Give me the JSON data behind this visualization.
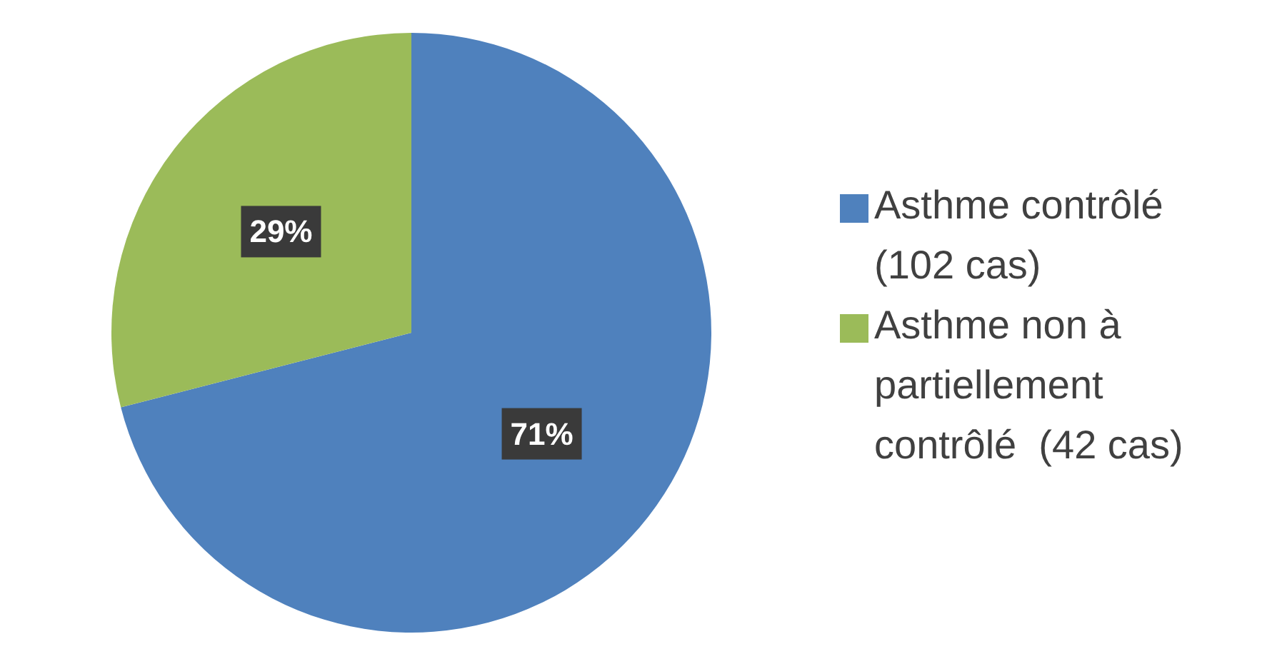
{
  "chart_data": {
    "type": "pie",
    "categories": [
      "Asthme contrôlé (102 cas)",
      "Asthme non à partiellement contrôlé  (42 cas)"
    ],
    "values": [
      71,
      29
    ],
    "colors": [
      "#4f81bd",
      "#9bbb59"
    ],
    "value_labels": [
      "71%",
      "29%"
    ],
    "legend": "right"
  }
}
